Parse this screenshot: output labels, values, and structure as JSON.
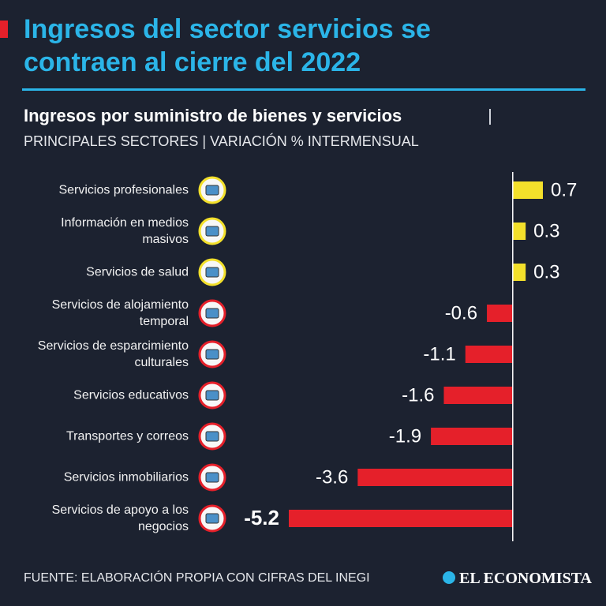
{
  "chart_data": {
    "type": "bar",
    "orientation": "horizontal",
    "title": "Ingresos del sector servicios se contraen al cierre del 2022",
    "subtitle": "Ingresos por suministro de bienes y servicios",
    "subtitle_note": "PRINCIPALES SECTORES | VARIACIÓN % INTERMENSUAL",
    "categories": [
      "Servicios profesionales",
      "Información en medios masivos",
      "Servicios de salud",
      "Servicios de alojamiento temporal",
      "Servicios de esparcimiento culturales",
      "Servicios educativos",
      "Transportes y correos",
      "Servicios inmobiliarios",
      "Servicios de apoyo a los negocios"
    ],
    "values": [
      0.7,
      0.3,
      0.3,
      -0.6,
      -1.1,
      -1.6,
      -1.9,
      -3.6,
      -5.2
    ],
    "colors": {
      "positive": "#f3e02b",
      "negative": "#e5202a"
    },
    "xlim": [
      -5.2,
      0.7
    ],
    "source": "FUENTE: ELABORACIÓN PROPIA CON CIFRAS DEL INEGI",
    "brand": "EL ECONOMISTA"
  }
}
